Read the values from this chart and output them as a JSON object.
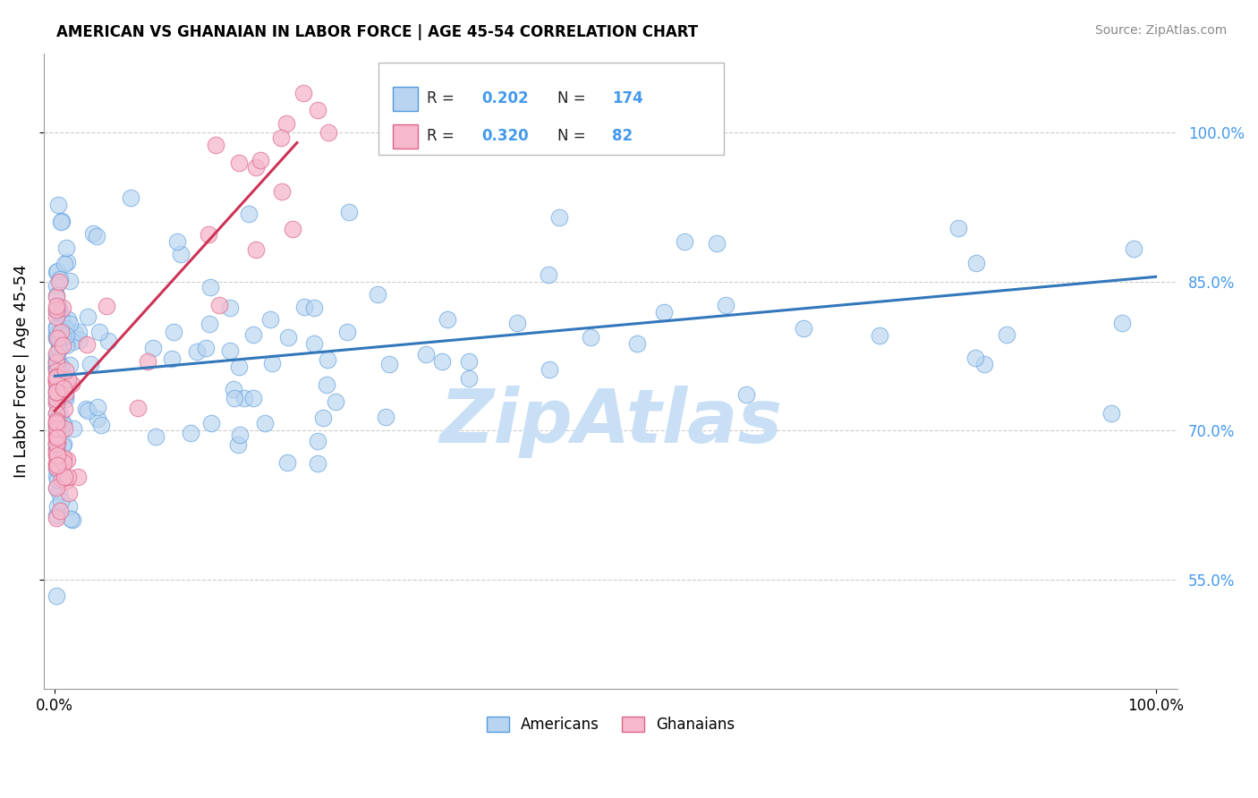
{
  "title": "AMERICAN VS GHANAIAN IN LABOR FORCE | AGE 45-54 CORRELATION CHART",
  "source": "Source: ZipAtlas.com",
  "ylabel": "In Labor Force | Age 45-54",
  "legend_americans": "Americans",
  "legend_ghanaians": "Ghanaians",
  "R_american": 0.202,
  "N_american": 174,
  "R_ghanaian": 0.32,
  "N_ghanaian": 82,
  "color_american_face": "#b8d4f0",
  "color_american_edge": "#5599dd",
  "color_ghanaian_face": "#f5b8cc",
  "color_ghanaian_edge": "#dd6688",
  "trendline_american_color": "#3377bb",
  "trendline_ghanaian_color": "#cc3355",
  "ytick_color": "#4499ee",
  "watermark_color": "#c8dff5",
  "yticks": [
    0.55,
    0.7,
    0.85,
    1.0
  ],
  "ytick_labels": [
    "55.0%",
    "70.0%",
    "85.0%",
    "100.0%"
  ],
  "am_trend_x0": 0.0,
  "am_trend_y0": 0.755,
  "am_trend_x1": 1.0,
  "am_trend_y1": 0.855,
  "gh_trend_x0": 0.0,
  "gh_trend_y0": 0.72,
  "gh_trend_x1": 0.22,
  "gh_trend_y1": 0.99,
  "xmin": -0.01,
  "xmax": 1.02,
  "ymin": 0.44,
  "ymax": 1.08,
  "grid_color": "#cccccc",
  "grid_style": "--"
}
